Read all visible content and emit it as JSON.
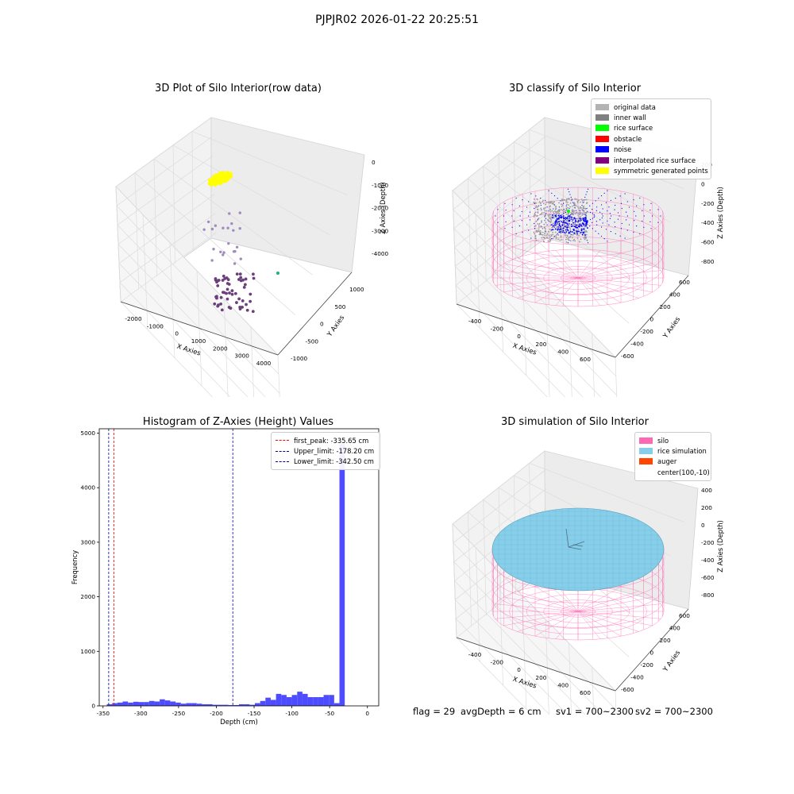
{
  "suptitle": "PJPJR02 2026-01-22 20:25:51",
  "colors": {
    "original": "#b3b3b3",
    "inner_wall": "#808080",
    "rice_surface": "#00ff00",
    "obstacle": "#ff0000",
    "noise": "#0000ff",
    "interp": "#800080",
    "symmetric": "#ffff00",
    "silo": "#ff69b4",
    "rice_sim": "#87ceeb",
    "auger": "#ff4500",
    "hist_bar": "#4d4dff",
    "peak": "#ff0000",
    "limit": "#0000a0"
  },
  "chart_data": [
    {
      "type": "scatter",
      "title": "3D Plot of Silo Interior(row data)",
      "xlabel": "X Axies",
      "ylabel": "Y Axies",
      "zlabel": "Z Axies (Depth)",
      "xticks": [
        "-2000",
        "-1000",
        "0",
        "1000",
        "2000",
        "3000",
        "4000"
      ],
      "yticks": [
        "-1000",
        "-500",
        "0",
        "500",
        "1000"
      ],
      "zticks": [
        "0",
        "-1000",
        "-2000",
        "-3000",
        "-4000"
      ]
    },
    {
      "type": "scatter",
      "title": "3D classify of Silo Interior",
      "xlabel": "X Axies",
      "ylabel": "Y Axies",
      "zlabel": "Z Axies (Depth)",
      "xticks": [
        "-400",
        "-200",
        "0",
        "200",
        "400",
        "600"
      ],
      "yticks": [
        "-600",
        "-400",
        "-200",
        "0",
        "200",
        "400",
        "600"
      ],
      "zticks": [
        "200",
        "0",
        "-200",
        "-400",
        "-600",
        "-800"
      ],
      "legend": [
        "original data",
        "inner wall",
        "rice surface",
        "obstacle",
        "noise",
        "interpolated rice surface",
        "symmetric generated points"
      ]
    },
    {
      "type": "bar",
      "title": "Histogram of Z-Axies (Height) Values",
      "xlabel": "Depth (cm)",
      "ylabel": "Frequency",
      "xlim": [
        -355,
        15
      ],
      "ylim": [
        0,
        5080
      ],
      "xticks": [
        -350,
        -300,
        -250,
        -200,
        -150,
        -100,
        -50,
        0
      ],
      "yticks": [
        0,
        1000,
        2000,
        3000,
        4000,
        5000
      ],
      "bin_start": -345,
      "bin_width": 7,
      "values": [
        30,
        50,
        60,
        80,
        60,
        75,
        70,
        70,
        90,
        80,
        120,
        100,
        80,
        60,
        40,
        50,
        50,
        40,
        30,
        30,
        20,
        20,
        20,
        15,
        15,
        30,
        30,
        20,
        50,
        90,
        150,
        110,
        220,
        200,
        160,
        200,
        260,
        220,
        160,
        160,
        160,
        200,
        200,
        50,
        4800
      ],
      "lines": [
        {
          "label": "first_peak: -335.65 cm",
          "x": -335.65,
          "kind": "peak"
        },
        {
          "label": "Upper_limit: -178.20 cm",
          "x": -178.2,
          "kind": "limit"
        },
        {
          "label": "Lower_limit: -342.50 cm",
          "x": -342.5,
          "kind": "limit"
        }
      ]
    },
    {
      "type": "area",
      "title": "3D simulation of Silo Interior",
      "xlabel": "X Axies",
      "ylabel": "Y Axies",
      "zlabel": "Z Axies (Depth)",
      "xticks": [
        "-400",
        "-200",
        "0",
        "200",
        "400",
        "600"
      ],
      "yticks": [
        "-600",
        "-400",
        "-200",
        "0",
        "200",
        "400",
        "600"
      ],
      "zticks": [
        "400",
        "200",
        "0",
        "-200",
        "-400",
        "-600",
        "-800"
      ],
      "legend": [
        "silo",
        "rice simulation",
        "auger",
        "center(100,-10)"
      ]
    }
  ],
  "footer": {
    "flag": "flag = 29",
    "avg": "avgDepth = 6 cm",
    "sv1": "sv1 = 700~2300",
    "sv2": "sv2 = 700~2300"
  }
}
